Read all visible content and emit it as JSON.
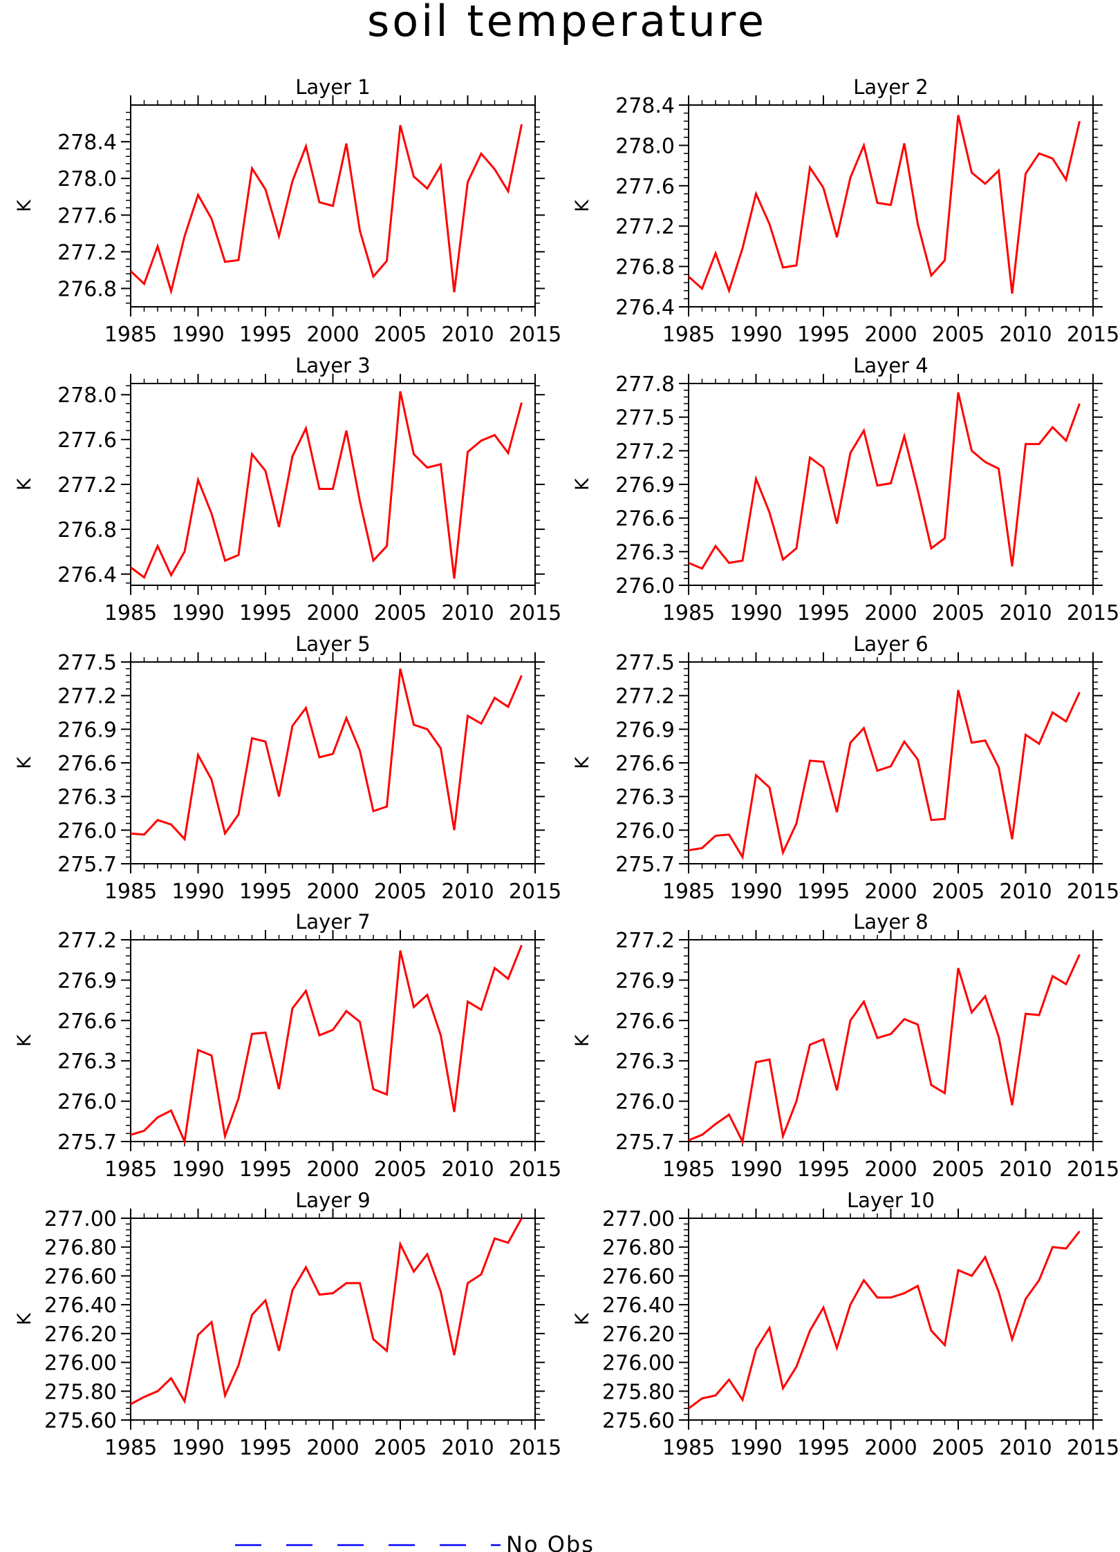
{
  "title": "soil temperature",
  "legend": {
    "dash_color": "#0000ff",
    "label": "No Obs"
  },
  "line_color": "#ff0000",
  "chart_data": [
    {
      "type": "line",
      "title": "Layer 1",
      "ylabel": "K",
      "xlim": [
        1985,
        2015
      ],
      "ylim": [
        276.6,
        278.8
      ],
      "x_ticks": [
        "1985",
        "1990",
        "1995",
        "2000",
        "2005",
        "2010",
        "2015"
      ],
      "y_ticks": [
        "276.8",
        "277.2",
        "277.6",
        "278.0",
        "278.4"
      ],
      "x": [
        1985,
        1986,
        1987,
        1988,
        1989,
        1990,
        1991,
        1992,
        1993,
        1994,
        1995,
        1996,
        1997,
        1998,
        1999,
        2000,
        2001,
        2002,
        2003,
        2004,
        2005,
        2006,
        2007,
        2008,
        2009,
        2010,
        2011,
        2012,
        2013,
        2014
      ],
      "values": [
        276.99,
        276.85,
        277.26,
        276.77,
        277.37,
        277.82,
        277.56,
        277.09,
        277.11,
        278.11,
        277.88,
        277.37,
        277.97,
        278.35,
        277.74,
        277.7,
        278.38,
        277.43,
        276.93,
        277.1,
        278.58,
        278.02,
        277.89,
        278.14,
        276.76,
        277.96,
        278.27,
        278.1,
        277.86,
        278.59
      ]
    },
    {
      "type": "line",
      "title": "Layer 2",
      "ylabel": "K",
      "xlim": [
        1985,
        2015
      ],
      "ylim": [
        276.4,
        278.4
      ],
      "x_ticks": [
        "1985",
        "1990",
        "1995",
        "2000",
        "2005",
        "2010",
        "2015"
      ],
      "y_ticks": [
        "276.4",
        "276.8",
        "277.2",
        "277.6",
        "278.0",
        "278.4"
      ],
      "x": [
        1985,
        1986,
        1987,
        1988,
        1989,
        1990,
        1991,
        1992,
        1993,
        1994,
        1995,
        1996,
        1997,
        1998,
        1999,
        2000,
        2001,
        2002,
        2003,
        2004,
        2005,
        2006,
        2007,
        2008,
        2009,
        2010,
        2011,
        2012,
        2013,
        2014
      ],
      "values": [
        276.7,
        276.58,
        276.93,
        276.56,
        276.98,
        277.52,
        277.22,
        276.79,
        276.81,
        277.78,
        277.58,
        277.09,
        277.68,
        278.0,
        277.43,
        277.41,
        278.02,
        277.22,
        276.71,
        276.86,
        278.3,
        277.73,
        277.62,
        277.75,
        276.53,
        277.72,
        277.92,
        277.87,
        277.66,
        278.24
      ]
    },
    {
      "type": "line",
      "title": "Layer 3",
      "ylabel": "K",
      "xlim": [
        1985,
        2015
      ],
      "ylim": [
        276.3,
        278.1
      ],
      "x_ticks": [
        "1985",
        "1990",
        "1995",
        "2000",
        "2005",
        "2010",
        "2015"
      ],
      "y_ticks": [
        "276.4",
        "276.8",
        "277.2",
        "277.6",
        "278.0"
      ],
      "x": [
        1985,
        1986,
        1987,
        1988,
        1989,
        1990,
        1991,
        1992,
        1993,
        1994,
        1995,
        1996,
        1997,
        1998,
        1999,
        2000,
        2001,
        2002,
        2003,
        2004,
        2005,
        2006,
        2007,
        2008,
        2009,
        2010,
        2011,
        2012,
        2013,
        2014
      ],
      "values": [
        276.46,
        276.37,
        276.65,
        276.39,
        276.6,
        277.24,
        276.94,
        276.52,
        276.57,
        277.47,
        277.32,
        276.82,
        277.45,
        277.7,
        277.16,
        277.16,
        277.68,
        277.05,
        276.52,
        276.65,
        278.03,
        277.47,
        277.35,
        277.38,
        276.36,
        277.49,
        277.59,
        277.64,
        277.48,
        277.93
      ]
    },
    {
      "type": "line",
      "title": "Layer 4",
      "ylabel": "K",
      "xlim": [
        1985,
        2015
      ],
      "ylim": [
        276.0,
        277.8
      ],
      "x_ticks": [
        "1985",
        "1990",
        "1995",
        "2000",
        "2005",
        "2010",
        "2015"
      ],
      "y_ticks": [
        "276.0",
        "276.3",
        "276.6",
        "276.9",
        "277.2",
        "277.5",
        "277.8"
      ],
      "x": [
        1985,
        1986,
        1987,
        1988,
        1989,
        1990,
        1991,
        1992,
        1993,
        1994,
        1995,
        1996,
        1997,
        1998,
        1999,
        2000,
        2001,
        2002,
        2003,
        2004,
        2005,
        2006,
        2007,
        2008,
        2009,
        2010,
        2011,
        2012,
        2013,
        2014
      ],
      "values": [
        276.2,
        276.15,
        276.35,
        276.2,
        276.22,
        276.95,
        276.65,
        276.23,
        276.33,
        277.14,
        277.05,
        276.55,
        277.18,
        277.38,
        276.89,
        276.91,
        277.33,
        276.85,
        276.33,
        276.42,
        277.72,
        277.2,
        277.1,
        277.04,
        276.17,
        277.26,
        277.26,
        277.41,
        277.29,
        277.62
      ]
    },
    {
      "type": "line",
      "title": "Layer 5",
      "ylabel": "K",
      "xlim": [
        1985,
        2015
      ],
      "ylim": [
        275.7,
        277.5
      ],
      "x_ticks": [
        "1985",
        "1990",
        "1995",
        "2000",
        "2005",
        "2010",
        "2015"
      ],
      "y_ticks": [
        "275.7",
        "276.0",
        "276.3",
        "276.6",
        "276.9",
        "277.2",
        "277.5"
      ],
      "x": [
        1985,
        1986,
        1987,
        1988,
        1989,
        1990,
        1991,
        1992,
        1993,
        1994,
        1995,
        1996,
        1997,
        1998,
        1999,
        2000,
        2001,
        2002,
        2003,
        2004,
        2005,
        2006,
        2007,
        2008,
        2009,
        2010,
        2011,
        2012,
        2013,
        2014
      ],
      "values": [
        275.97,
        275.96,
        276.09,
        276.05,
        275.92,
        276.67,
        276.45,
        275.97,
        276.14,
        276.82,
        276.79,
        276.3,
        276.93,
        277.09,
        276.65,
        276.68,
        277.0,
        276.71,
        276.17,
        276.21,
        277.44,
        276.94,
        276.9,
        276.73,
        276.0,
        277.02,
        276.95,
        277.18,
        277.1,
        277.38
      ]
    },
    {
      "type": "line",
      "title": "Layer 6",
      "ylabel": "K",
      "xlim": [
        1985,
        2015
      ],
      "ylim": [
        275.7,
        277.5
      ],
      "x_ticks": [
        "1985",
        "1990",
        "1995",
        "2000",
        "2005",
        "2010",
        "2015"
      ],
      "y_ticks": [
        "275.7",
        "276.0",
        "276.3",
        "276.6",
        "276.9",
        "277.2",
        "277.5"
      ],
      "x": [
        1985,
        1986,
        1987,
        1988,
        1989,
        1990,
        1991,
        1992,
        1993,
        1994,
        1995,
        1996,
        1997,
        1998,
        1999,
        2000,
        2001,
        2002,
        2003,
        2004,
        2005,
        2006,
        2007,
        2008,
        2009,
        2010,
        2011,
        2012,
        2013,
        2014
      ],
      "values": [
        275.82,
        275.84,
        275.95,
        275.96,
        275.76,
        276.49,
        276.38,
        275.8,
        276.06,
        276.62,
        276.61,
        276.16,
        276.78,
        276.91,
        276.53,
        276.57,
        276.79,
        276.63,
        276.09,
        276.1,
        277.25,
        276.78,
        276.8,
        276.56,
        275.92,
        276.85,
        276.77,
        277.05,
        276.97,
        277.23
      ]
    },
    {
      "type": "line",
      "title": "Layer 7",
      "ylabel": "K",
      "xlim": [
        1985,
        2015
      ],
      "ylim": [
        275.7,
        277.2
      ],
      "x_ticks": [
        "1985",
        "1990",
        "1995",
        "2000",
        "2005",
        "2010",
        "2015"
      ],
      "y_ticks": [
        "275.7",
        "276.0",
        "276.3",
        "276.6",
        "276.9",
        "277.2"
      ],
      "x": [
        1985,
        1986,
        1987,
        1988,
        1989,
        1990,
        1991,
        1992,
        1993,
        1994,
        1995,
        1996,
        1997,
        1998,
        1999,
        2000,
        2001,
        2002,
        2003,
        2004,
        2005,
        2006,
        2007,
        2008,
        2009,
        2010,
        2011,
        2012,
        2013,
        2014
      ],
      "values": [
        275.75,
        275.78,
        275.88,
        275.93,
        275.7,
        276.38,
        276.34,
        275.74,
        276.02,
        276.5,
        276.51,
        276.09,
        276.69,
        276.82,
        276.49,
        276.53,
        276.67,
        276.59,
        276.09,
        276.05,
        277.12,
        276.7,
        276.79,
        276.49,
        275.92,
        276.74,
        276.68,
        276.99,
        276.91,
        277.16
      ]
    },
    {
      "type": "line",
      "title": "Layer 8",
      "ylabel": "K",
      "xlim": [
        1985,
        2015
      ],
      "ylim": [
        275.7,
        277.2
      ],
      "x_ticks": [
        "1985",
        "1990",
        "1995",
        "2000",
        "2005",
        "2010",
        "2015"
      ],
      "y_ticks": [
        "275.7",
        "276.0",
        "276.3",
        "276.6",
        "276.9",
        "277.2"
      ],
      "x": [
        1985,
        1986,
        1987,
        1988,
        1989,
        1990,
        1991,
        1992,
        1993,
        1994,
        1995,
        1996,
        1997,
        1998,
        1999,
        2000,
        2001,
        2002,
        2003,
        2004,
        2005,
        2006,
        2007,
        2008,
        2009,
        2010,
        2011,
        2012,
        2013,
        2014
      ],
      "values": [
        275.71,
        275.75,
        275.83,
        275.9,
        275.7,
        276.29,
        276.31,
        275.74,
        276.0,
        276.42,
        276.46,
        276.08,
        276.6,
        276.74,
        276.47,
        276.5,
        276.61,
        276.57,
        276.12,
        276.06,
        276.99,
        276.66,
        276.78,
        276.48,
        275.97,
        276.65,
        276.64,
        276.93,
        276.87,
        277.09
      ]
    },
    {
      "type": "line",
      "title": "Layer 9",
      "ylabel": "K",
      "xlim": [
        1985,
        2015
      ],
      "ylim": [
        275.6,
        277.0
      ],
      "x_ticks": [
        "1985",
        "1990",
        "1995",
        "2000",
        "2005",
        "2010",
        "2015"
      ],
      "y_ticks": [
        "275.60",
        "275.80",
        "276.00",
        "276.20",
        "276.40",
        "276.60",
        "276.80",
        "277.00"
      ],
      "x": [
        1985,
        1986,
        1987,
        1988,
        1989,
        1990,
        1991,
        1992,
        1993,
        1994,
        1995,
        1996,
        1997,
        1998,
        1999,
        2000,
        2001,
        2002,
        2003,
        2004,
        2005,
        2006,
        2007,
        2008,
        2009,
        2010,
        2011,
        2012,
        2013,
        2014
      ],
      "values": [
        275.71,
        275.76,
        275.8,
        275.89,
        275.73,
        276.19,
        276.28,
        275.77,
        275.98,
        276.33,
        276.43,
        276.08,
        276.5,
        276.66,
        276.47,
        276.48,
        276.55,
        276.55,
        276.16,
        276.08,
        276.82,
        276.63,
        276.75,
        276.49,
        276.05,
        276.55,
        276.61,
        276.86,
        276.83,
        277.0
      ]
    },
    {
      "type": "line",
      "title": "Layer 10",
      "ylabel": "K",
      "xlim": [
        1985,
        2015
      ],
      "ylim": [
        275.6,
        277.0
      ],
      "x_ticks": [
        "1985",
        "1990",
        "1995",
        "2000",
        "2005",
        "2010",
        "2015"
      ],
      "y_ticks": [
        "275.60",
        "275.80",
        "276.00",
        "276.20",
        "276.40",
        "276.60",
        "276.80",
        "277.00"
      ],
      "x": [
        1985,
        1986,
        1987,
        1988,
        1989,
        1990,
        1991,
        1992,
        1993,
        1994,
        1995,
        1996,
        1997,
        1998,
        1999,
        2000,
        2001,
        2002,
        2003,
        2004,
        2005,
        2006,
        2007,
        2008,
        2009,
        2010,
        2011,
        2012,
        2013,
        2014
      ],
      "values": [
        275.68,
        275.75,
        275.77,
        275.88,
        275.74,
        276.09,
        276.24,
        275.82,
        275.97,
        276.22,
        276.38,
        276.1,
        276.4,
        276.57,
        276.45,
        276.45,
        276.48,
        276.53,
        276.22,
        276.12,
        276.64,
        276.6,
        276.73,
        276.49,
        276.16,
        276.44,
        276.57,
        276.8,
        276.79,
        276.91
      ]
    }
  ]
}
